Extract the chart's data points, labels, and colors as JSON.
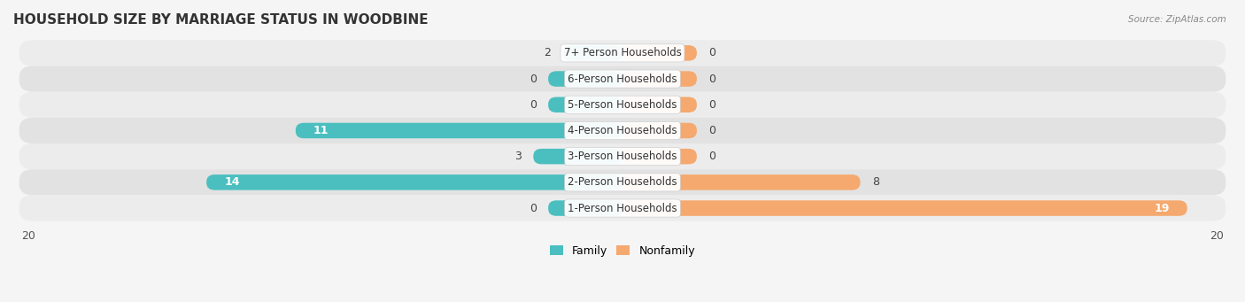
{
  "title": "HOUSEHOLD SIZE BY MARRIAGE STATUS IN WOODBINE",
  "source": "Source: ZipAtlas.com",
  "categories": [
    "7+ Person Households",
    "6-Person Households",
    "5-Person Households",
    "4-Person Households",
    "3-Person Households",
    "2-Person Households",
    "1-Person Households"
  ],
  "family_values": [
    2,
    0,
    0,
    11,
    3,
    14,
    0
  ],
  "nonfamily_values": [
    0,
    0,
    0,
    0,
    0,
    8,
    19
  ],
  "family_color": "#4BBFBF",
  "nonfamily_color": "#F5A96E",
  "xlim_left": -20,
  "xlim_right": 20,
  "bar_height": 0.6,
  "stub_size": 2.5,
  "label_fontsize": 9,
  "title_fontsize": 11,
  "legend_fontsize": 9,
  "cat_fontsize": 8.5,
  "row_colors": [
    "#ececec",
    "#e2e2e2"
  ],
  "bg_color": "#f5f5f5"
}
